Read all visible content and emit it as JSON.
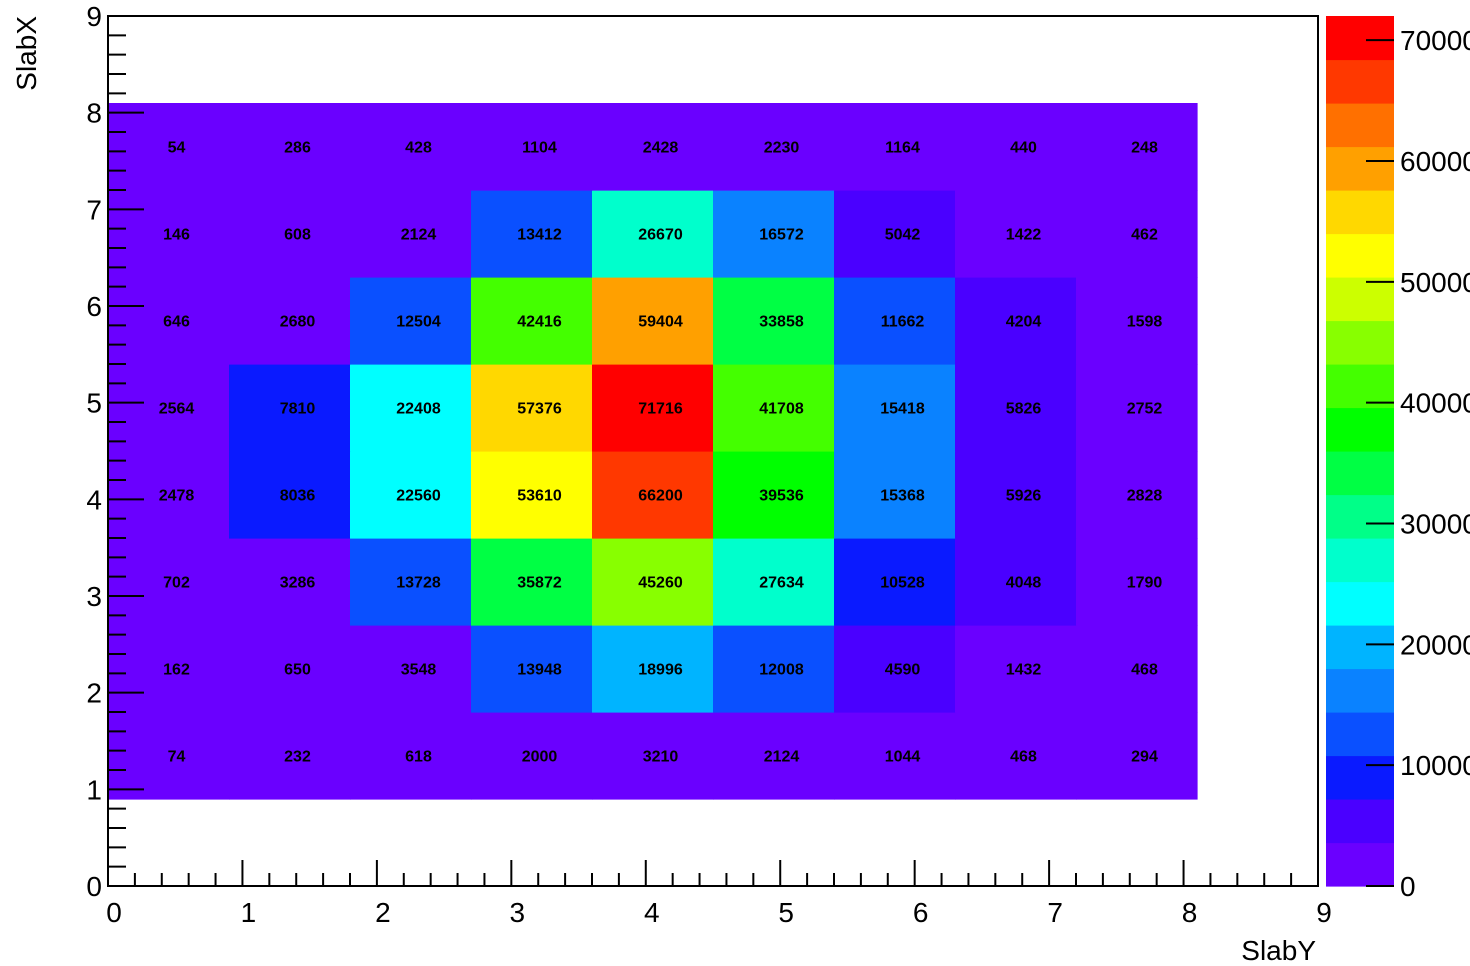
{
  "chart_data": {
    "type": "heatmap",
    "title": "",
    "xlabel": "SlabY",
    "ylabel": "SlabX",
    "xlim": [
      0,
      9
    ],
    "ylim": [
      0,
      9
    ],
    "x_ticks": [
      "0",
      "1",
      "2",
      "3",
      "4",
      "5",
      "6",
      "7",
      "8",
      "9"
    ],
    "y_ticks": [
      "0",
      "1",
      "2",
      "3",
      "4",
      "5",
      "6",
      "7",
      "8",
      "9"
    ],
    "x_bins": [
      0.0,
      0.9,
      1.8,
      2.7,
      3.6,
      4.5,
      5.4,
      6.3,
      7.2,
      8.1
    ],
    "y_bins": [
      0.9,
      1.8,
      2.7,
      3.6,
      4.5,
      5.4,
      6.3,
      7.2,
      8.1
    ],
    "rows": [
      [
        74,
        232,
        618,
        2000,
        3210,
        2124,
        1044,
        468,
        294
      ],
      [
        162,
        650,
        3548,
        13948,
        18996,
        12008,
        4590,
        1432,
        468
      ],
      [
        702,
        3286,
        13728,
        35872,
        45260,
        27634,
        10528,
        4048,
        1790
      ],
      [
        2478,
        8036,
        22560,
        53610,
        66200,
        39536,
        15368,
        5926,
        2828
      ],
      [
        2564,
        7810,
        22408,
        57376,
        71716,
        41708,
        15418,
        5826,
        2752
      ],
      [
        646,
        2680,
        12504,
        42416,
        59404,
        33858,
        11662,
        4204,
        1598
      ],
      [
        146,
        608,
        2124,
        13412,
        26670,
        16572,
        5042,
        1422,
        462
      ],
      [
        54,
        286,
        428,
        1104,
        2428,
        2230,
        1164,
        440,
        248
      ]
    ],
    "colorbar": {
      "min": 0,
      "max": 72000,
      "tick_values": [
        0,
        10000,
        20000,
        30000,
        40000,
        50000,
        60000,
        70000
      ],
      "tick_labels": [
        "0",
        "10000",
        "20000",
        "30000",
        "40000",
        "50000",
        "60000",
        "70000"
      ],
      "colors": [
        "#6a00ff",
        "#4a00ff",
        "#0a1aff",
        "#0a50ff",
        "#0a82ff",
        "#00b4ff",
        "#00ffff",
        "#00ffcc",
        "#00ff88",
        "#00ff44",
        "#00ff00",
        "#44ff00",
        "#88ff00",
        "#ccff00",
        "#ffff00",
        "#ffd800",
        "#ffa000",
        "#ff7000",
        "#ff3800",
        "#ff0000"
      ]
    },
    "grid": false,
    "legend": "colorbar-right"
  }
}
